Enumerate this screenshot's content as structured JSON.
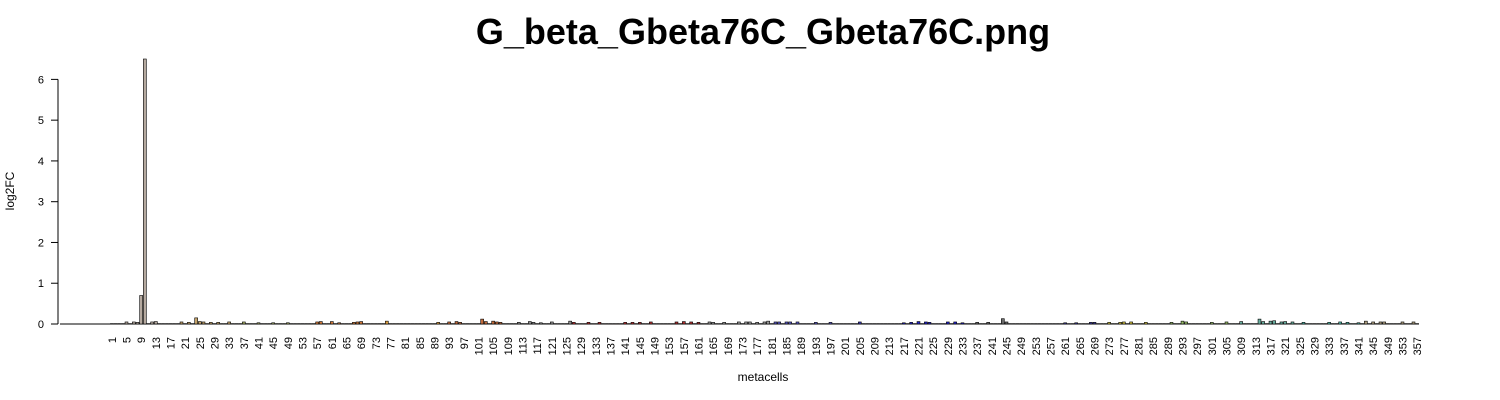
{
  "chart_data": {
    "type": "bar",
    "title": "G_beta_Gbeta76C_Gbeta76C.png",
    "xlabel": "metacells",
    "ylabel": "log2FC",
    "ylim": [
      0,
      6.5
    ],
    "yticks": [
      0,
      1,
      2,
      3,
      4,
      5,
      6
    ],
    "n_categories": 357,
    "xtick_labels": [
      "1",
      "5",
      "9",
      "13",
      "17",
      "21",
      "25",
      "29",
      "33",
      "37",
      "41",
      "45",
      "49",
      "53",
      "57",
      "61",
      "65",
      "69",
      "73",
      "77",
      "81",
      "85",
      "89",
      "93",
      "97",
      "101",
      "105",
      "109",
      "113",
      "117",
      "121",
      "125",
      "129",
      "133",
      "137",
      "141",
      "145",
      "149",
      "153",
      "157",
      "161",
      "165",
      "169",
      "173",
      "177",
      "181",
      "185",
      "189",
      "193",
      "197",
      "201",
      "205",
      "209",
      "213",
      "217",
      "221",
      "225",
      "229",
      "233",
      "237",
      "241",
      "245",
      "249",
      "253",
      "257",
      "261",
      "265",
      "269",
      "273",
      "277",
      "281",
      "285",
      "289",
      "293",
      "297",
      "301",
      "305",
      "309",
      "313",
      "317",
      "321",
      "325",
      "329",
      "333",
      "337",
      "341",
      "345",
      "349",
      "353",
      "357"
    ],
    "xtick_positions": [
      1,
      5,
      9,
      13,
      17,
      21,
      25,
      29,
      33,
      37,
      41,
      45,
      49,
      53,
      57,
      61,
      65,
      69,
      73,
      77,
      81,
      85,
      89,
      93,
      97,
      101,
      105,
      109,
      113,
      117,
      121,
      125,
      129,
      133,
      137,
      141,
      145,
      149,
      153,
      157,
      161,
      165,
      169,
      173,
      177,
      181,
      185,
      189,
      193,
      197,
      201,
      205,
      209,
      213,
      217,
      221,
      225,
      229,
      233,
      237,
      241,
      245,
      249,
      253,
      257,
      261,
      265,
      269,
      273,
      277,
      281,
      285,
      289,
      293,
      297,
      301,
      305,
      309,
      313,
      317,
      321,
      325,
      329,
      333,
      337,
      341,
      345,
      349,
      353,
      357
    ],
    "default_value": 0.01,
    "values_sparse": {
      "5": 0.05,
      "7": 0.05,
      "8": 0.04,
      "9": 0.7,
      "10": 6.5,
      "12": 0.05,
      "13": 0.06,
      "20": 0.05,
      "22": 0.04,
      "24": 0.15,
      "25": 0.06,
      "26": 0.05,
      "28": 0.04,
      "30": 0.04,
      "33": 0.05,
      "37": 0.05,
      "41": 0.03,
      "45": 0.03,
      "49": 0.03,
      "57": 0.05,
      "58": 0.06,
      "61": 0.06,
      "63": 0.03,
      "67": 0.04,
      "68": 0.05,
      "69": 0.06,
      "76": 0.07,
      "90": 0.04,
      "93": 0.05,
      "95": 0.06,
      "96": 0.04,
      "102": 0.12,
      "103": 0.06,
      "105": 0.07,
      "106": 0.05,
      "107": 0.04,
      "112": 0.04,
      "115": 0.06,
      "116": 0.04,
      "118": 0.03,
      "121": 0.05,
      "126": 0.07,
      "127": 0.04,
      "131": 0.04,
      "134": 0.04,
      "141": 0.04,
      "143": 0.04,
      "145": 0.04,
      "148": 0.05,
      "155": 0.05,
      "157": 0.06,
      "159": 0.05,
      "161": 0.04,
      "164": 0.05,
      "165": 0.04,
      "168": 0.04,
      "172": 0.05,
      "174": 0.05,
      "175": 0.05,
      "177": 0.04,
      "179": 0.05,
      "180": 0.07,
      "182": 0.05,
      "183": 0.05,
      "185": 0.05,
      "186": 0.05,
      "188": 0.05,
      "193": 0.04,
      "197": 0.04,
      "205": 0.05,
      "217": 0.03,
      "219": 0.04,
      "221": 0.06,
      "223": 0.05,
      "224": 0.04,
      "229": 0.05,
      "231": 0.05,
      "233": 0.03,
      "237": 0.04,
      "240": 0.04,
      "244": 0.13,
      "245": 0.05,
      "261": 0.03,
      "264": 0.03,
      "268": 0.04,
      "269": 0.04,
      "273": 0.04,
      "276": 0.04,
      "277": 0.05,
      "279": 0.05,
      "283": 0.04,
      "290": 0.04,
      "293": 0.07,
      "294": 0.05,
      "301": 0.04,
      "305": 0.05,
      "309": 0.06,
      "314": 0.12,
      "315": 0.06,
      "317": 0.07,
      "318": 0.08,
      "320": 0.05,
      "321": 0.06,
      "323": 0.05,
      "326": 0.04,
      "333": 0.04,
      "336": 0.05,
      "338": 0.04,
      "341": 0.03,
      "343": 0.07,
      "345": 0.05,
      "347": 0.05,
      "348": 0.05,
      "353": 0.05,
      "356": 0.05
    },
    "palette": [
      "#b5a99f",
      "#c4a36a",
      "#a8b068",
      "#d17a3b",
      "#e0a040",
      "#c26b3c",
      "#8f8f8f",
      "#c83232",
      "#b03030",
      "#9a9a9a",
      "#5a5ac8",
      "#3a3ab8",
      "#2222cc",
      "#6a6a6a",
      "#3c3c9c",
      "#d0c040",
      "#9ac06a",
      "#6ab0a0",
      "#50c0b0",
      "#b0a080"
    ],
    "grid": false,
    "legend": "none"
  }
}
